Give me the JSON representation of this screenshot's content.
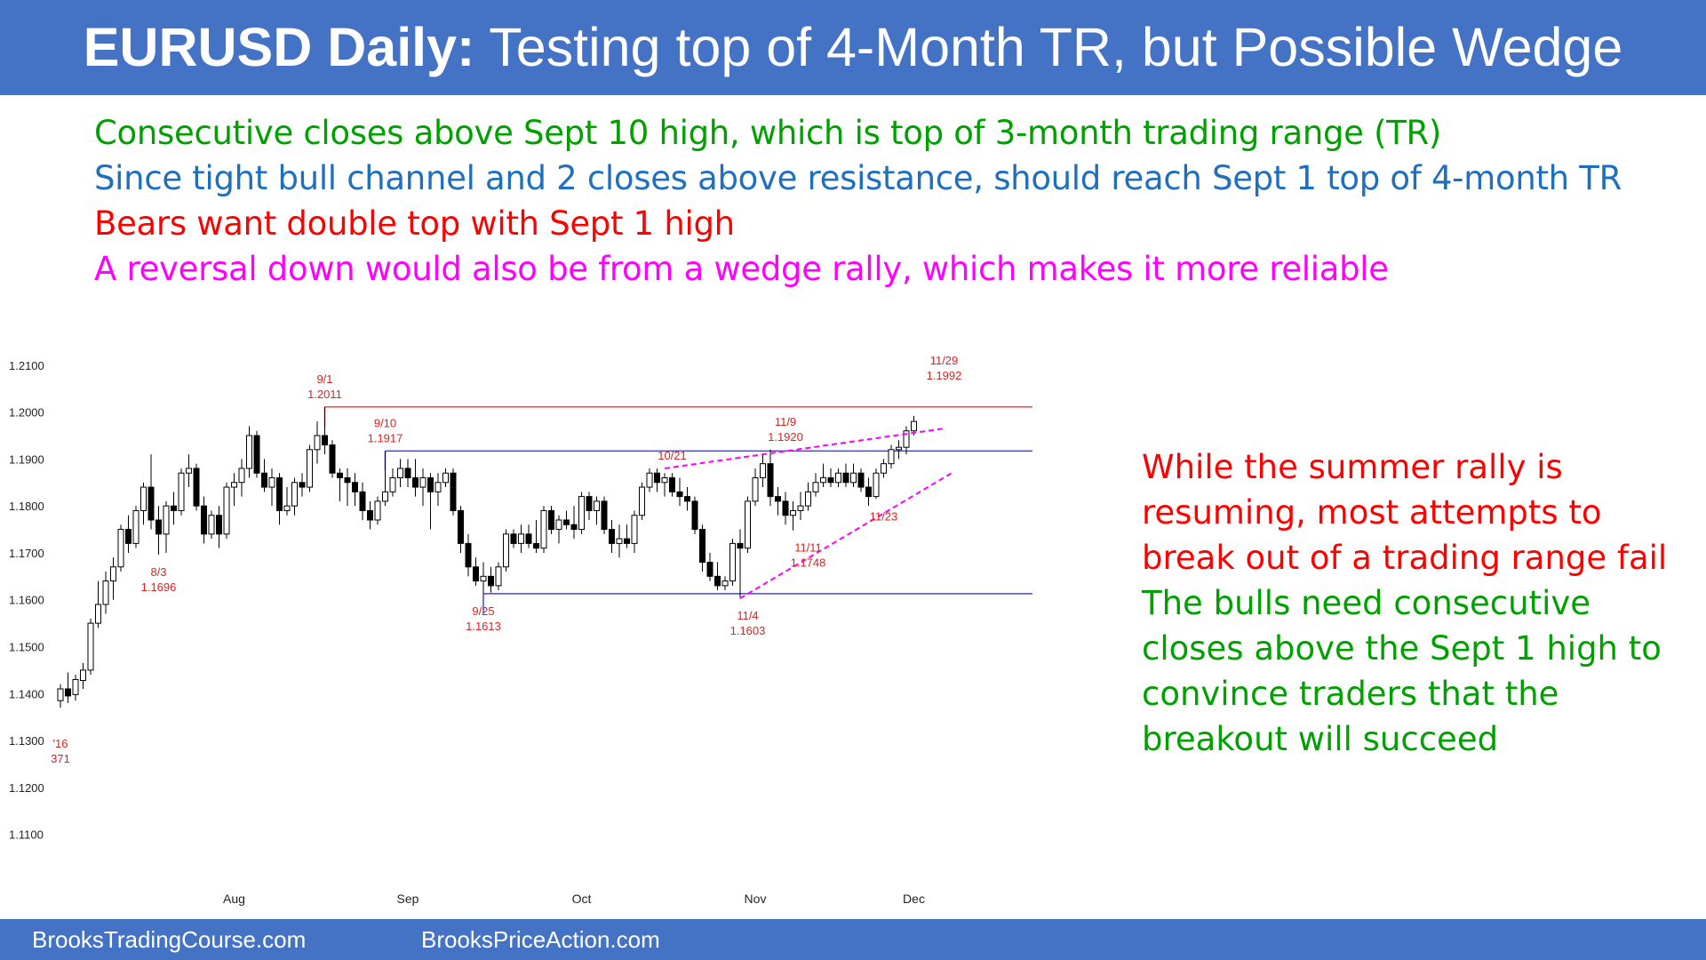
{
  "title": {
    "bold": "EURUSD Daily:",
    "rest": " Testing top of 4-Month TR, but Possible Wedge"
  },
  "bullets": [
    {
      "text": "Consecutive closes above Sept 10 high, which is top of 3-month trading range (TR)",
      "color": "#00a000"
    },
    {
      "text": "Since tight bull channel and 2 closes above resistance, should reach Sept 1 top of 4-month TR",
      "color": "#1f6fbf"
    },
    {
      "text": "Bears want double top with Sept 1 high",
      "color": "#ff0000"
    },
    {
      "text": "A reversal down would also be from a wedge rally, which makes it more reliable",
      "color": "#ff00ff"
    }
  ],
  "side_notes": {
    "red": {
      "lines": [
        "While the summer rally is",
        "resuming, most attempts to",
        "break out of a trading range fail"
      ],
      "color": "#ff0000"
    },
    "green": {
      "lines": [
        "The bulls need consecutive",
        "closes above the Sept 1 high to",
        "convince traders that the",
        "breakout will succeed"
      ],
      "color": "#00a000"
    }
  },
  "footer": {
    "left": "BrooksTradingCourse.com",
    "right": "BrooksPriceAction.com"
  },
  "chart_data": {
    "type": "candlestick",
    "title": "",
    "ylim": [
      1.105,
      1.213
    ],
    "y_ticks": [
      "1.2100",
      "1.2000",
      "1.1900",
      "1.1800",
      "1.1700",
      "1.1600",
      "1.1500",
      "1.1400",
      "1.1300",
      "1.1200",
      "1.1100"
    ],
    "month_labels": [
      {
        "label": "Aug",
        "index": 23
      },
      {
        "label": "Sep",
        "index": 46
      },
      {
        "label": "Oct",
        "index": 69
      },
      {
        "label": "Nov",
        "index": 92
      },
      {
        "label": "Dec",
        "index": 113
      }
    ],
    "candles": [
      {
        "o": 1.1385,
        "h": 1.142,
        "l": 1.137,
        "c": 1.141
      },
      {
        "o": 1.141,
        "h": 1.1445,
        "l": 1.138,
        "c": 1.1395
      },
      {
        "o": 1.1398,
        "h": 1.144,
        "l": 1.1385,
        "c": 1.143
      },
      {
        "o": 1.1428,
        "h": 1.1465,
        "l": 1.141,
        "c": 1.145
      },
      {
        "o": 1.145,
        "h": 1.156,
        "l": 1.144,
        "c": 1.155
      },
      {
        "o": 1.155,
        "h": 1.164,
        "l": 1.154,
        "c": 1.159
      },
      {
        "o": 1.159,
        "h": 1.166,
        "l": 1.157,
        "c": 1.164
      },
      {
        "o": 1.164,
        "h": 1.169,
        "l": 1.16,
        "c": 1.167
      },
      {
        "o": 1.167,
        "h": 1.176,
        "l": 1.166,
        "c": 1.175
      },
      {
        "o": 1.175,
        "h": 1.178,
        "l": 1.17,
        "c": 1.172
      },
      {
        "o": 1.172,
        "h": 1.18,
        "l": 1.171,
        "c": 1.179
      },
      {
        "o": 1.179,
        "h": 1.185,
        "l": 1.176,
        "c": 1.184
      },
      {
        "o": 1.184,
        "h": 1.191,
        "l": 1.175,
        "c": 1.177
      },
      {
        "o": 1.177,
        "h": 1.18,
        "l": 1.1696,
        "c": 1.174
      },
      {
        "o": 1.174,
        "h": 1.181,
        "l": 1.17,
        "c": 1.18
      },
      {
        "o": 1.18,
        "h": 1.183,
        "l": 1.176,
        "c": 1.179
      },
      {
        "o": 1.179,
        "h": 1.188,
        "l": 1.178,
        "c": 1.187
      },
      {
        "o": 1.187,
        "h": 1.191,
        "l": 1.184,
        "c": 1.188
      },
      {
        "o": 1.188,
        "h": 1.189,
        "l": 1.179,
        "c": 1.18
      },
      {
        "o": 1.18,
        "h": 1.182,
        "l": 1.172,
        "c": 1.174
      },
      {
        "o": 1.174,
        "h": 1.179,
        "l": 1.173,
        "c": 1.178
      },
      {
        "o": 1.178,
        "h": 1.18,
        "l": 1.171,
        "c": 1.174
      },
      {
        "o": 1.174,
        "h": 1.185,
        "l": 1.173,
        "c": 1.184
      },
      {
        "o": 1.184,
        "h": 1.187,
        "l": 1.18,
        "c": 1.185
      },
      {
        "o": 1.185,
        "h": 1.19,
        "l": 1.182,
        "c": 1.188
      },
      {
        "o": 1.188,
        "h": 1.197,
        "l": 1.186,
        "c": 1.195
      },
      {
        "o": 1.195,
        "h": 1.196,
        "l": 1.186,
        "c": 1.187
      },
      {
        "o": 1.187,
        "h": 1.19,
        "l": 1.183,
        "c": 1.184
      },
      {
        "o": 1.184,
        "h": 1.188,
        "l": 1.18,
        "c": 1.186
      },
      {
        "o": 1.186,
        "h": 1.187,
        "l": 1.176,
        "c": 1.179
      },
      {
        "o": 1.179,
        "h": 1.184,
        "l": 1.178,
        "c": 1.18
      },
      {
        "o": 1.18,
        "h": 1.186,
        "l": 1.178,
        "c": 1.185
      },
      {
        "o": 1.185,
        "h": 1.187,
        "l": 1.182,
        "c": 1.184
      },
      {
        "o": 1.184,
        "h": 1.193,
        "l": 1.183,
        "c": 1.192
      },
      {
        "o": 1.192,
        "h": 1.198,
        "l": 1.189,
        "c": 1.195
      },
      {
        "o": 1.195,
        "h": 1.2011,
        "l": 1.191,
        "c": 1.193
      },
      {
        "o": 1.193,
        "h": 1.194,
        "l": 1.186,
        "c": 1.187
      },
      {
        "o": 1.187,
        "h": 1.188,
        "l": 1.181,
        "c": 1.186
      },
      {
        "o": 1.186,
        "h": 1.188,
        "l": 1.18,
        "c": 1.185
      },
      {
        "o": 1.185,
        "h": 1.187,
        "l": 1.18,
        "c": 1.183
      },
      {
        "o": 1.183,
        "h": 1.185,
        "l": 1.177,
        "c": 1.179
      },
      {
        "o": 1.179,
        "h": 1.181,
        "l": 1.175,
        "c": 1.177
      },
      {
        "o": 1.177,
        "h": 1.182,
        "l": 1.176,
        "c": 1.181
      },
      {
        "o": 1.181,
        "h": 1.1917,
        "l": 1.18,
        "c": 1.183
      },
      {
        "o": 1.183,
        "h": 1.188,
        "l": 1.182,
        "c": 1.186
      },
      {
        "o": 1.186,
        "h": 1.19,
        "l": 1.184,
        "c": 1.188
      },
      {
        "o": 1.188,
        "h": 1.19,
        "l": 1.184,
        "c": 1.186
      },
      {
        "o": 1.186,
        "h": 1.19,
        "l": 1.182,
        "c": 1.184
      },
      {
        "o": 1.184,
        "h": 1.188,
        "l": 1.18,
        "c": 1.186
      },
      {
        "o": 1.186,
        "h": 1.187,
        "l": 1.175,
        "c": 1.183
      },
      {
        "o": 1.183,
        "h": 1.187,
        "l": 1.18,
        "c": 1.185
      },
      {
        "o": 1.185,
        "h": 1.188,
        "l": 1.184,
        "c": 1.187
      },
      {
        "o": 1.187,
        "h": 1.188,
        "l": 1.178,
        "c": 1.179
      },
      {
        "o": 1.179,
        "h": 1.18,
        "l": 1.17,
        "c": 1.172
      },
      {
        "o": 1.172,
        "h": 1.174,
        "l": 1.165,
        "c": 1.167
      },
      {
        "o": 1.167,
        "h": 1.169,
        "l": 1.163,
        "c": 1.164
      },
      {
        "o": 1.164,
        "h": 1.168,
        "l": 1.1613,
        "c": 1.165
      },
      {
        "o": 1.165,
        "h": 1.167,
        "l": 1.1615,
        "c": 1.163
      },
      {
        "o": 1.163,
        "h": 1.168,
        "l": 1.162,
        "c": 1.167
      },
      {
        "o": 1.167,
        "h": 1.175,
        "l": 1.166,
        "c": 1.174
      },
      {
        "o": 1.174,
        "h": 1.175,
        "l": 1.171,
        "c": 1.172
      },
      {
        "o": 1.172,
        "h": 1.176,
        "l": 1.17,
        "c": 1.174
      },
      {
        "o": 1.174,
        "h": 1.176,
        "l": 1.171,
        "c": 1.172
      },
      {
        "o": 1.172,
        "h": 1.177,
        "l": 1.17,
        "c": 1.171
      },
      {
        "o": 1.171,
        "h": 1.18,
        "l": 1.17,
        "c": 1.179
      },
      {
        "o": 1.179,
        "h": 1.18,
        "l": 1.174,
        "c": 1.175
      },
      {
        "o": 1.175,
        "h": 1.178,
        "l": 1.172,
        "c": 1.177
      },
      {
        "o": 1.177,
        "h": 1.179,
        "l": 1.175,
        "c": 1.176
      },
      {
        "o": 1.176,
        "h": 1.18,
        "l": 1.173,
        "c": 1.175
      },
      {
        "o": 1.175,
        "h": 1.183,
        "l": 1.174,
        "c": 1.182
      },
      {
        "o": 1.182,
        "h": 1.183,
        "l": 1.177,
        "c": 1.179
      },
      {
        "o": 1.179,
        "h": 1.182,
        "l": 1.176,
        "c": 1.181
      },
      {
        "o": 1.181,
        "h": 1.182,
        "l": 1.174,
        "c": 1.175
      },
      {
        "o": 1.175,
        "h": 1.177,
        "l": 1.17,
        "c": 1.172
      },
      {
        "o": 1.172,
        "h": 1.176,
        "l": 1.169,
        "c": 1.173
      },
      {
        "o": 1.173,
        "h": 1.176,
        "l": 1.171,
        "c": 1.172
      },
      {
        "o": 1.172,
        "h": 1.179,
        "l": 1.17,
        "c": 1.178
      },
      {
        "o": 1.178,
        "h": 1.185,
        "l": 1.177,
        "c": 1.184
      },
      {
        "o": 1.184,
        "h": 1.188,
        "l": 1.183,
        "c": 1.187
      },
      {
        "o": 1.187,
        "h": 1.188,
        "l": 1.183,
        "c": 1.185
      },
      {
        "o": 1.185,
        "h": 1.187,
        "l": 1.182,
        "c": 1.186
      },
      {
        "o": 1.186,
        "h": 1.187,
        "l": 1.182,
        "c": 1.183
      },
      {
        "o": 1.183,
        "h": 1.186,
        "l": 1.18,
        "c": 1.182
      },
      {
        "o": 1.182,
        "h": 1.184,
        "l": 1.179,
        "c": 1.181
      },
      {
        "o": 1.181,
        "h": 1.182,
        "l": 1.174,
        "c": 1.175
      },
      {
        "o": 1.175,
        "h": 1.176,
        "l": 1.166,
        "c": 1.168
      },
      {
        "o": 1.168,
        "h": 1.17,
        "l": 1.164,
        "c": 1.165
      },
      {
        "o": 1.165,
        "h": 1.168,
        "l": 1.162,
        "c": 1.163
      },
      {
        "o": 1.163,
        "h": 1.165,
        "l": 1.162,
        "c": 1.164
      },
      {
        "o": 1.164,
        "h": 1.173,
        "l": 1.163,
        "c": 1.172
      },
      {
        "o": 1.172,
        "h": 1.175,
        "l": 1.1603,
        "c": 1.171
      },
      {
        "o": 1.171,
        "h": 1.182,
        "l": 1.17,
        "c": 1.181
      },
      {
        "o": 1.181,
        "h": 1.188,
        "l": 1.18,
        "c": 1.186
      },
      {
        "o": 1.186,
        "h": 1.191,
        "l": 1.184,
        "c": 1.189
      },
      {
        "o": 1.189,
        "h": 1.192,
        "l": 1.18,
        "c": 1.182
      },
      {
        "o": 1.182,
        "h": 1.184,
        "l": 1.178,
        "c": 1.181
      },
      {
        "o": 1.181,
        "h": 1.183,
        "l": 1.176,
        "c": 1.178
      },
      {
        "o": 1.178,
        "h": 1.181,
        "l": 1.1748,
        "c": 1.179
      },
      {
        "o": 1.179,
        "h": 1.183,
        "l": 1.177,
        "c": 1.18
      },
      {
        "o": 1.18,
        "h": 1.185,
        "l": 1.179,
        "c": 1.183
      },
      {
        "o": 1.183,
        "h": 1.187,
        "l": 1.182,
        "c": 1.185
      },
      {
        "o": 1.185,
        "h": 1.189,
        "l": 1.184,
        "c": 1.186
      },
      {
        "o": 1.186,
        "h": 1.188,
        "l": 1.184,
        "c": 1.185
      },
      {
        "o": 1.185,
        "h": 1.188,
        "l": 1.184,
        "c": 1.187
      },
      {
        "o": 1.187,
        "h": 1.189,
        "l": 1.184,
        "c": 1.185
      },
      {
        "o": 1.185,
        "h": 1.189,
        "l": 1.184,
        "c": 1.187
      },
      {
        "o": 1.187,
        "h": 1.188,
        "l": 1.183,
        "c": 1.184
      },
      {
        "o": 1.184,
        "h": 1.186,
        "l": 1.18,
        "c": 1.182
      },
      {
        "o": 1.182,
        "h": 1.188,
        "l": 1.1815,
        "c": 1.187
      },
      {
        "o": 1.187,
        "h": 1.19,
        "l": 1.186,
        "c": 1.189
      },
      {
        "o": 1.189,
        "h": 1.193,
        "l": 1.188,
        "c": 1.192
      },
      {
        "o": 1.192,
        "h": 1.194,
        "l": 1.19,
        "c": 1.1925
      },
      {
        "o": 1.1925,
        "h": 1.197,
        "l": 1.191,
        "c": 1.196
      },
      {
        "o": 1.196,
        "h": 1.1992,
        "l": 1.195,
        "c": 1.198
      }
    ],
    "resistance_lines": [
      {
        "value": 1.2011,
        "from_index": 35,
        "to_index": 124,
        "color": "#ff4040"
      },
      {
        "value": 1.1917,
        "from_index": 43,
        "to_index": 124,
        "color": "#4040ff"
      },
      {
        "value": 1.1613,
        "from_index": 56,
        "to_index": 124,
        "color": "#4040ff"
      }
    ],
    "wedge_lines": [
      {
        "from": [
          80,
          1.188
        ],
        "to": [
          117,
          1.1965
        ],
        "color": "#ff00ff"
      },
      {
        "from": [
          90,
          1.1603
        ],
        "to": [
          118,
          1.187
        ],
        "color": "#ff00ff"
      }
    ],
    "annotations": [
      {
        "lines": [
          "9/1",
          "1.2011"
        ],
        "index": 35,
        "value": 1.2011,
        "pos": "above"
      },
      {
        "lines": [
          "9/10",
          "1.1917"
        ],
        "index": 43,
        "value": 1.1917,
        "pos": "above"
      },
      {
        "lines": [
          "10/21"
        ],
        "index": 81,
        "value": 1.188,
        "pos": "above"
      },
      {
        "lines": [
          "11/9",
          "1.1920"
        ],
        "index": 96,
        "value": 1.192,
        "pos": "above"
      },
      {
        "lines": [
          "11/29",
          "1.1992"
        ],
        "index": 117,
        "value": 1.205,
        "pos": "above"
      },
      {
        "lines": [
          "8/3",
          "1.1696"
        ],
        "index": 13,
        "value": 1.1696,
        "pos": "below"
      },
      {
        "lines": [
          "9/25",
          "1.1613"
        ],
        "index": 56,
        "value": 1.1613,
        "pos": "below"
      },
      {
        "lines": [
          "11/4",
          "1.1603"
        ],
        "index": 91,
        "value": 1.1603,
        "pos": "below"
      },
      {
        "lines": [
          "11/11",
          "1.1748"
        ],
        "index": 99,
        "value": 1.1748,
        "pos": "below"
      },
      {
        "lines": [
          "11/23"
        ],
        "index": 109,
        "value": 1.1815,
        "pos": "below"
      },
      {
        "lines": [
          "'16",
          "371"
        ],
        "index": 0,
        "value": 1.133,
        "pos": "below"
      }
    ]
  }
}
